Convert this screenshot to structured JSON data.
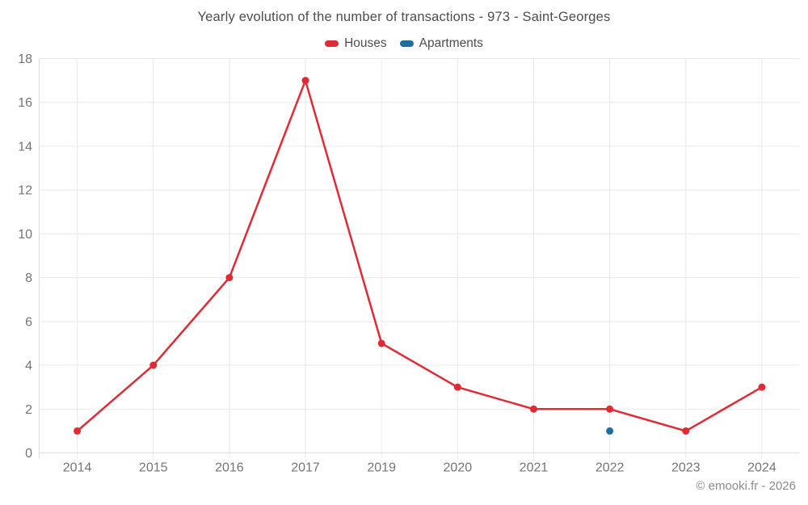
{
  "header": {
    "title": "Yearly evolution of the number of transactions - 973 - Saint-Georges"
  },
  "legend": {
    "items": [
      {
        "label": "Houses"
      },
      {
        "label": "Apartments"
      }
    ]
  },
  "footer": {
    "copyright": "© emooki.fr - 2026"
  },
  "chart_data": {
    "type": "line",
    "title": "Yearly evolution of the number of transactions - 973 - Saint-Georges",
    "categories": [
      "2014",
      "2015",
      "2016",
      "2017",
      "2019",
      "2020",
      "2021",
      "2022",
      "2023",
      "2024"
    ],
    "series": [
      {
        "name": "Houses",
        "color": "#e02b35",
        "values": [
          1,
          4,
          8,
          17,
          5,
          3,
          2,
          2,
          1,
          3
        ]
      },
      {
        "name": "Apartments",
        "color": "#1a6f9e",
        "values": [
          null,
          null,
          null,
          null,
          null,
          null,
          null,
          1,
          null,
          null
        ]
      }
    ],
    "xlabel": "",
    "ylabel": "",
    "ylim": [
      0,
      18
    ],
    "yticks": [
      0,
      2,
      4,
      6,
      8,
      10,
      12,
      14,
      16,
      18
    ],
    "grid": true,
    "legend_position": "top"
  }
}
